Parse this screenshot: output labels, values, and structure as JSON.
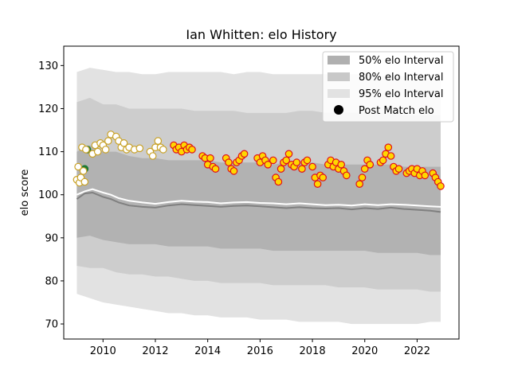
{
  "chart_data": {
    "type": "line",
    "title": "Ian Whitten: elo History",
    "xlabel": "",
    "ylabel": "elo score",
    "xlim": [
      2008.5,
      2023.6
    ],
    "ylim": [
      66.5,
      134.5
    ],
    "grid": false,
    "legend_placement": "top-right",
    "x_ticks": [
      2010,
      2012,
      2014,
      2016,
      2018,
      2020,
      2022
    ],
    "y_ticks": [
      70,
      80,
      90,
      100,
      110,
      120,
      130
    ],
    "legend": [
      {
        "label": "50% elo Interval",
        "color": "#b0b0b0"
      },
      {
        "label": "80% elo Interval",
        "color": "#c8c8c8"
      },
      {
        "label": "95% elo Interval",
        "color": "#e2e2e2"
      },
      {
        "label": "Post Match elo",
        "color": "#000000"
      }
    ],
    "colors": {
      "band95": "#e2e2e2",
      "band80": "#cdcdcd",
      "band50": "#b2b2b2",
      "mean_line": "#ffffff",
      "median_line": "#808080",
      "marker_early_fill": "#ffffff",
      "marker_early_edge": "#c9a227",
      "marker_late_fill": "#ffd700",
      "marker_late_edge": "#e0101a",
      "marker_special_fill": "#1e7b34"
    },
    "bands": {
      "x": [
        2009.0,
        2009.5,
        2010.0,
        2010.5,
        2011.0,
        2011.5,
        2012.0,
        2012.5,
        2013.0,
        2013.5,
        2014.0,
        2014.5,
        2015.0,
        2015.5,
        2016.0,
        2016.5,
        2017.0,
        2017.5,
        2018.0,
        2018.5,
        2019.0,
        2019.5,
        2020.0,
        2020.5,
        2021.0,
        2021.5,
        2022.0,
        2022.5,
        2022.9
      ],
      "p95_upper": [
        128.5,
        129.5,
        129.0,
        128.5,
        128.5,
        128.0,
        128.0,
        128.5,
        128.5,
        128.5,
        128.5,
        128.5,
        128.0,
        128.5,
        128.5,
        128.0,
        128.0,
        128.0,
        128.0,
        128.0,
        128.0,
        128.0,
        128.0,
        127.5,
        127.5,
        127.5,
        127.0,
        127.0,
        127.0
      ],
      "p80_upper": [
        121.5,
        122.5,
        121.0,
        121.0,
        120.0,
        120.0,
        120.0,
        120.0,
        120.0,
        119.5,
        119.5,
        119.5,
        119.5,
        119.0,
        119.0,
        119.0,
        119.0,
        119.5,
        119.5,
        119.0,
        119.0,
        119.0,
        119.0,
        119.0,
        119.0,
        118.5,
        118.5,
        118.5,
        118.5
      ],
      "p50_upper": [
        110.0,
        111.5,
        110.0,
        110.0,
        109.0,
        108.5,
        108.5,
        108.0,
        108.0,
        108.0,
        108.0,
        107.5,
        107.5,
        107.5,
        107.5,
        107.0,
        107.5,
        107.5,
        107.5,
        107.0,
        107.0,
        107.0,
        107.0,
        107.0,
        107.0,
        106.5,
        106.5,
        106.5,
        106.5
      ],
      "p50_lower": [
        90.0,
        90.5,
        89.5,
        89.0,
        88.5,
        88.5,
        88.5,
        88.0,
        88.0,
        88.0,
        88.0,
        87.5,
        87.5,
        87.5,
        87.5,
        87.0,
        87.0,
        87.0,
        87.0,
        87.0,
        87.0,
        87.0,
        87.0,
        86.5,
        86.5,
        86.5,
        86.5,
        86.0,
        86.0
      ],
      "p80_lower": [
        83.5,
        83.0,
        83.0,
        82.0,
        81.5,
        81.5,
        81.0,
        81.0,
        80.5,
        80.0,
        80.0,
        79.5,
        79.5,
        79.5,
        79.5,
        79.0,
        79.0,
        79.0,
        79.0,
        79.0,
        78.5,
        78.5,
        78.5,
        78.0,
        78.0,
        78.0,
        78.0,
        77.5,
        77.5
      ],
      "p95_lower": [
        77.0,
        76.0,
        75.0,
        74.5,
        74.0,
        73.5,
        73.0,
        72.5,
        72.5,
        72.0,
        72.0,
        71.5,
        71.5,
        71.5,
        71.0,
        71.0,
        71.0,
        70.5,
        70.5,
        70.5,
        70.5,
        70.0,
        70.0,
        70.0,
        70.0,
        70.0,
        70.0,
        70.5,
        70.5
      ]
    },
    "series": [
      {
        "kind": "mean-line",
        "x": [
          2009.0,
          2009.3,
          2009.6,
          2010.0,
          2010.3,
          2010.6,
          2011.0,
          2011.5,
          2012.0,
          2012.5,
          2013.0,
          2013.5,
          2014.0,
          2014.5,
          2015.0,
          2015.5,
          2016.0,
          2016.5,
          2017.0,
          2017.5,
          2018.0,
          2018.5,
          2019.0,
          2019.5,
          2020.0,
          2020.5,
          2021.0,
          2021.5,
          2022.0,
          2022.5,
          2022.9
        ],
        "values": [
          100.0,
          100.8,
          101.3,
          100.5,
          100.0,
          99.2,
          98.6,
          98.2,
          97.9,
          98.3,
          98.6,
          98.4,
          98.3,
          98.0,
          98.2,
          98.3,
          98.1,
          98.0,
          97.8,
          98.0,
          97.8,
          97.6,
          97.7,
          97.5,
          97.8,
          97.6,
          97.8,
          97.7,
          97.5,
          97.3,
          97.2
        ]
      },
      {
        "kind": "median-line",
        "x": [
          2009.0,
          2009.3,
          2009.6,
          2010.0,
          2010.3,
          2010.6,
          2011.0,
          2011.5,
          2012.0,
          2012.5,
          2013.0,
          2013.5,
          2014.0,
          2014.5,
          2015.0,
          2015.5,
          2016.0,
          2016.5,
          2017.0,
          2017.5,
          2018.0,
          2018.5,
          2019.0,
          2019.5,
          2020.0,
          2020.5,
          2021.0,
          2021.5,
          2022.0,
          2022.5,
          2022.9
        ],
        "values": [
          99.0,
          100.3,
          100.5,
          99.5,
          99.0,
          98.2,
          97.5,
          97.2,
          97.0,
          97.5,
          97.8,
          97.6,
          97.4,
          97.2,
          97.4,
          97.5,
          97.3,
          97.1,
          96.9,
          97.1,
          96.9,
          96.8,
          96.9,
          96.6,
          96.9,
          96.7,
          97.0,
          96.7,
          96.5,
          96.3,
          96.0
        ]
      },
      {
        "kind": "post-match-early",
        "x": [
          2009.0,
          2009.05,
          2009.1,
          2009.15,
          2009.2,
          2009.25,
          2009.3,
          2009.35,
          2009.6,
          2009.7,
          2009.8,
          2009.9,
          2010.0,
          2010.1,
          2010.2,
          2010.3,
          2010.5,
          2010.6,
          2010.7,
          2010.8,
          2010.9,
          2011.0,
          2011.2,
          2011.4,
          2011.8,
          2011.9,
          2012.0,
          2012.1,
          2012.2,
          2012.3
        ],
        "values": [
          103.5,
          106.5,
          102.8,
          104.0,
          111.0,
          105.5,
          103.0,
          110.5,
          109.5,
          111.5,
          110.0,
          112.0,
          111.5,
          110.5,
          112.5,
          114.0,
          113.5,
          112.5,
          111.0,
          112.0,
          110.5,
          111.0,
          110.5,
          110.8,
          110.0,
          109.0,
          111.0,
          112.5,
          111.0,
          110.5
        ]
      },
      {
        "kind": "post-match-special",
        "x": [
          2009.3,
          2009.4
        ],
        "values": [
          106.0,
          110.5
        ]
      },
      {
        "kind": "post-match-late",
        "x": [
          2012.7,
          2012.8,
          2012.9,
          2013.0,
          2013.1,
          2013.2,
          2013.3,
          2013.4,
          2013.8,
          2013.9,
          2014.0,
          2014.1,
          2014.2,
          2014.3,
          2014.7,
          2014.8,
          2014.9,
          2015.0,
          2015.1,
          2015.2,
          2015.3,
          2015.4,
          2015.9,
          2016.0,
          2016.1,
          2016.2,
          2016.3,
          2016.5,
          2016.6,
          2016.7,
          2016.8,
          2016.9,
          2017.0,
          2017.1,
          2017.2,
          2017.3,
          2017.4,
          2017.6,
          2017.7,
          2017.8,
          2018.0,
          2018.1,
          2018.2,
          2018.3,
          2018.4,
          2018.6,
          2018.7,
          2018.8,
          2018.9,
          2019.0,
          2019.1,
          2019.2,
          2019.3,
          2019.8,
          2019.9,
          2020.0,
          2020.1,
          2020.2,
          2020.6,
          2020.7,
          2020.8,
          2020.9,
          2021.0,
          2021.1,
          2021.2,
          2021.3,
          2021.6,
          2021.7,
          2021.8,
          2021.9,
          2022.0,
          2022.1,
          2022.2,
          2022.3,
          2022.6,
          2022.7,
          2022.8,
          2022.9
        ],
        "values": [
          111.5,
          110.5,
          111.0,
          110.0,
          111.5,
          110.5,
          111.0,
          110.5,
          109.0,
          108.5,
          107.0,
          108.5,
          106.5,
          106.0,
          108.5,
          107.5,
          106.0,
          105.5,
          107.5,
          108.0,
          109.0,
          109.5,
          108.5,
          107.5,
          109.0,
          108.0,
          107.0,
          108.0,
          104.0,
          103.0,
          106.0,
          107.5,
          108.0,
          109.5,
          107.0,
          106.5,
          107.5,
          106.0,
          107.5,
          108.0,
          106.5,
          104.0,
          102.5,
          104.5,
          104.0,
          107.0,
          108.0,
          106.5,
          107.5,
          106.0,
          107.0,
          105.5,
          104.5,
          102.5,
          104.0,
          106.0,
          108.0,
          107.0,
          107.5,
          108.0,
          109.5,
          111.0,
          109.0,
          106.5,
          105.5,
          106.0,
          105.0,
          105.5,
          106.0,
          105.0,
          106.0,
          104.5,
          105.5,
          104.5,
          105.0,
          104.0,
          103.0,
          102.0
        ]
      }
    ]
  }
}
